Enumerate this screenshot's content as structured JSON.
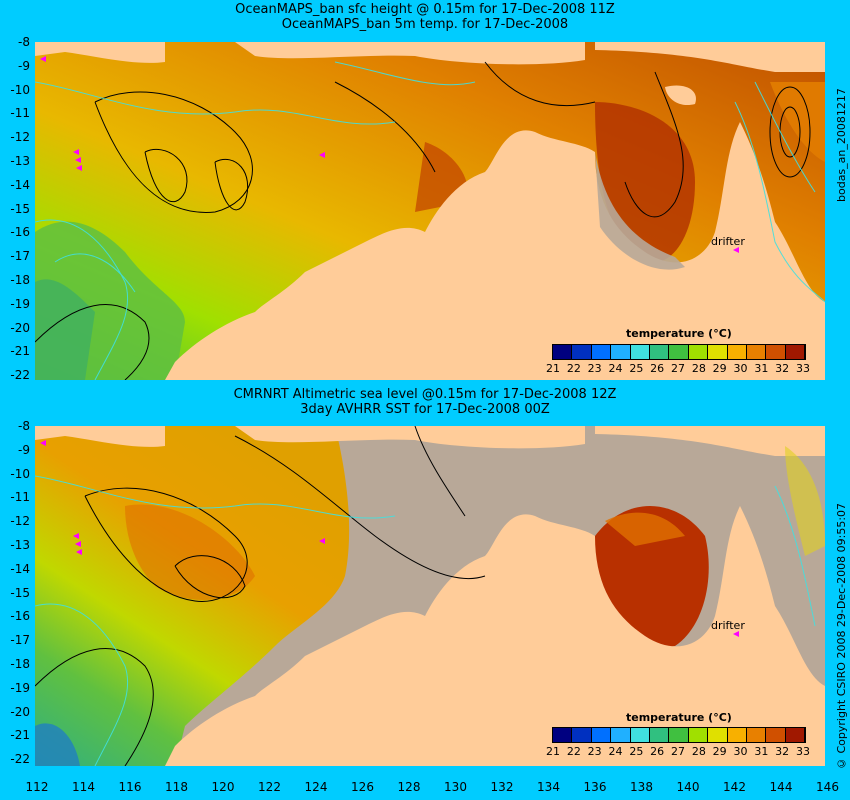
{
  "panels": [
    {
      "title1": "OceanMAPS_ban sfc height @ 0.15m for 17-Dec-2008 11Z",
      "title2": "OceanMAPS_ban 5m temp. for 17-Dec-2008",
      "side_label": "bodas_an_20081217",
      "drifter_label": "drifter",
      "colorbar_title": "temperature (°C)"
    },
    {
      "title1": "CMRNRT Altimetric sea level  @0.15m  for 17-Dec-2008 12Z",
      "title2": "3day AVHRR SST for 17-Dec-2008 00Z",
      "side_label": "© Copyright CSIRO 2008   29-Dec-2008 09:55:07",
      "drifter_label": "drifter",
      "colorbar_title": "temperature (°C)"
    }
  ],
  "y_ticks": [
    "-8",
    "-9",
    "-10",
    "-11",
    "-12",
    "-13",
    "-14",
    "-15",
    "-16",
    "-17",
    "-18",
    "-19",
    "-20",
    "-21",
    "-22"
  ],
  "x_ticks": [
    "112",
    "114",
    "116",
    "118",
    "120",
    "122",
    "124",
    "126",
    "128",
    "130",
    "132",
    "134",
    "136",
    "138",
    "140",
    "142",
    "144",
    "146"
  ],
  "colorbar": {
    "labels": [
      "21",
      "22",
      "23",
      "24",
      "25",
      "26",
      "27",
      "28",
      "29",
      "30",
      "31",
      "32",
      "33"
    ],
    "colors": [
      "#000080",
      "#0030c0",
      "#0070ff",
      "#20b0ff",
      "#40e0e0",
      "#30c080",
      "#40c040",
      "#a0e000",
      "#e0e000",
      "#f8b000",
      "#e88000",
      "#d05000",
      "#a01800"
    ]
  },
  "colors": {
    "background": "#00ccff",
    "land": "#ffcc99",
    "no_data": "#b8a898",
    "contour_cyan": "#40e0e0",
    "drifter": "#ff00ff"
  }
}
